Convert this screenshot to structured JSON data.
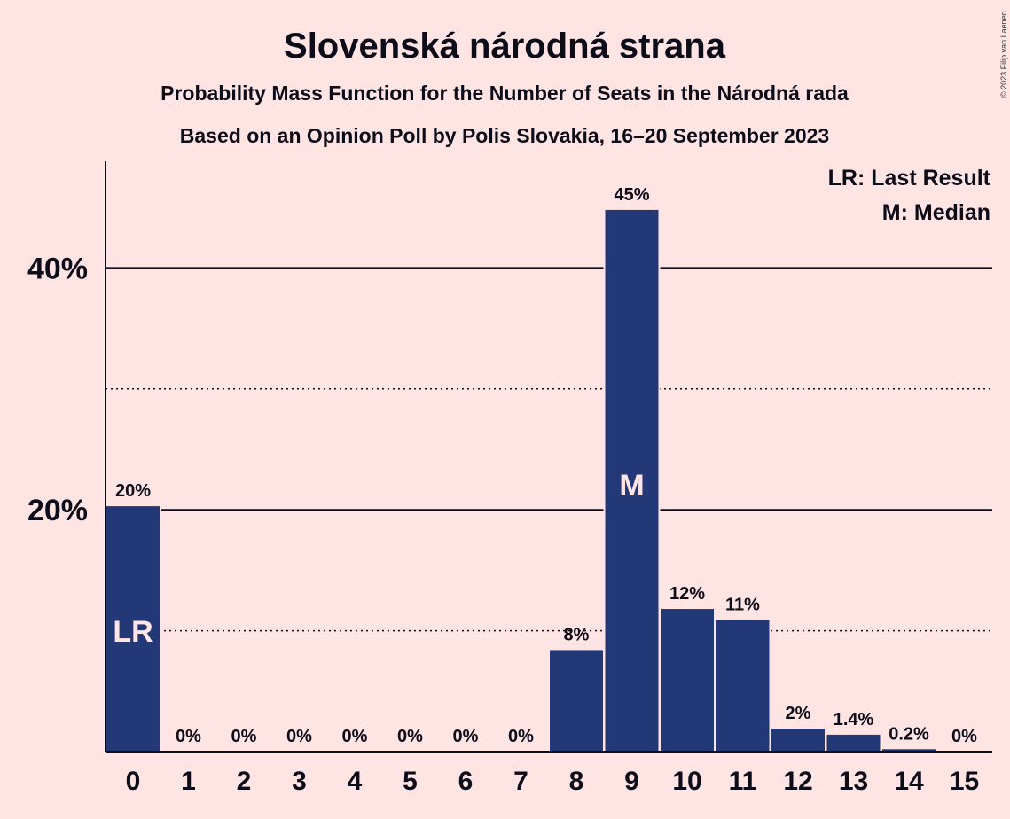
{
  "chart_data": {
    "type": "bar",
    "title": "Slovenská národná strana",
    "subtitle": "Probability Mass Function for the Number of Seats in the Národná rada",
    "subtitle2": "Based on an Opinion Poll by Polis Slovakia, 16–20 September 2023",
    "categories": [
      "0",
      "1",
      "2",
      "3",
      "4",
      "5",
      "6",
      "7",
      "8",
      "9",
      "10",
      "11",
      "12",
      "13",
      "14",
      "15"
    ],
    "values": [
      20.3,
      0,
      0,
      0,
      0,
      0,
      0,
      0,
      8.4,
      44.8,
      11.8,
      10.9,
      1.9,
      1.4,
      0.2,
      0
    ],
    "value_labels": [
      "20%",
      "0%",
      "0%",
      "0%",
      "0%",
      "0%",
      "0%",
      "0%",
      "8%",
      "45%",
      "12%",
      "11%",
      "2%",
      "1.4%",
      "0.2%",
      "0%"
    ],
    "ylim": [
      0,
      48
    ],
    "yticks": [
      {
        "value": 20,
        "label": "20%"
      },
      {
        "value": 40,
        "label": "40%"
      }
    ],
    "minor_gridlines": [
      10,
      30
    ],
    "bar_color": "#233876",
    "background_color": "#ffe4e4",
    "markers": [
      {
        "category": "0",
        "label": "LR"
      },
      {
        "category": "9",
        "label": "M"
      }
    ],
    "legend": [
      "LR: Last Result",
      "M: Median"
    ],
    "legend_position": "top-right",
    "copyright": "© 2023 Filip van Laenen"
  }
}
